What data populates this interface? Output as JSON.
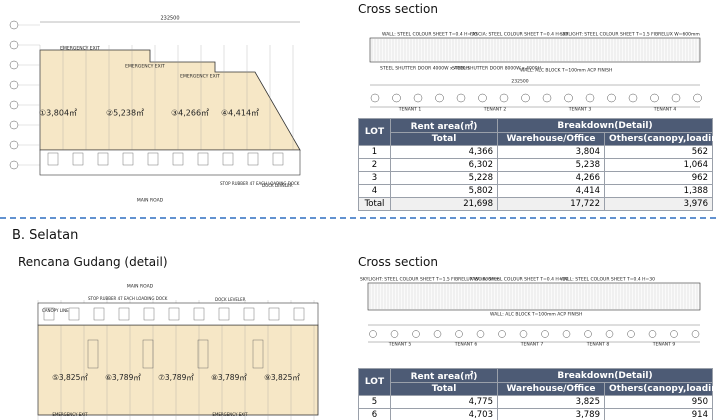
{
  "section_a": {
    "plan": {
      "lots": [
        "①3,804㎡",
        "②5,238㎡",
        "③4,266㎡",
        "④4,414㎡"
      ],
      "dimension": "232500",
      "notes": [
        "EMERGENCY EXIT",
        "EMERGENCY EXIT",
        "EMERGENCY EXIT",
        "STOP RUBBER 47 EACH LOADING DOCK",
        "DOCK LEVELER",
        "MAIN ROAD"
      ]
    },
    "cross_section": {
      "title": "Cross section",
      "notes": [
        "WALL: STEEL COLOUR SHEET T=0.4 H=30",
        "FASCIA: STEEL COLOUR SHEET T=0.4 H=30",
        "SKYLIGHT: STEEL COLOUR SHEET T=1.5 FIBRELUX W=600mm",
        "STEEL SHUTTER DOOR 4000W x 4000H",
        "STEEL SHUTTER DOOR 8000W x 4000H",
        "WALL: ALC BLOCK T=100mm ACP FINISH"
      ],
      "dimension": "232500",
      "tenants": [
        "TENANT 1",
        "TENANT 2",
        "TENANT 3",
        "TENANT 4"
      ]
    },
    "table": {
      "header": [
        "LOT",
        "Rent area(㎡)",
        "Breakdown(Detail)"
      ],
      "subheader": [
        "Total",
        "Warehouse/Office",
        "Others(canopy,loading)"
      ],
      "rows": [
        [
          "1",
          "4,366",
          "3,804",
          "562"
        ],
        [
          "2",
          "6,302",
          "5,238",
          "1,064"
        ],
        [
          "3",
          "5,228",
          "4,266",
          "962"
        ],
        [
          "4",
          "5,802",
          "4,414",
          "1,388"
        ],
        [
          "Total",
          "21,698",
          "17,722",
          "3,976"
        ]
      ]
    }
  },
  "section_b": {
    "heading": "B. Selatan",
    "plan_title": "Rencana Gudang (detail)",
    "plan": {
      "lots": [
        "⑤3,825㎡",
        "⑥3,789㎡",
        "⑦3,789㎡",
        "⑧3,789㎡",
        "⑨3,825㎡"
      ],
      "notes": [
        "MAIN ROAD",
        "STOP RUBBER 47 EACH LOADING DOCK",
        "DOCK LEVELER",
        "CANOPY LINE",
        "EMERGENCY EXIT",
        "EMERGENCY EXIT"
      ]
    },
    "cross_section": {
      "title": "Cross section",
      "notes": [
        "SKYLIGHT: STEEL COLOUR SHEET T=1.5 FIBRELUX W=600mm",
        "FASCIA: STEEL COLOUR SHEET T=0.4 H=30",
        "WALL: STEEL COLOUR SHEET T=0.4 H=30",
        "WALL: ALC BLOCK T=100mm ACP FINISH"
      ],
      "tenants": [
        "TENANT 5",
        "TENANT 6",
        "TENANT 7",
        "TENANT 8",
        "TENANT 9"
      ]
    },
    "table": {
      "header": [
        "LOT",
        "Rent area(㎡)",
        "Breakdown(Detail)"
      ],
      "subheader": [
        "Total",
        "Warehouse/Office",
        "Others(canopy,loading)"
      ],
      "rows": [
        [
          "5",
          "4,775",
          "3,825",
          "950"
        ],
        [
          "6",
          "4,703",
          "3,789",
          "914"
        ]
      ]
    }
  }
}
